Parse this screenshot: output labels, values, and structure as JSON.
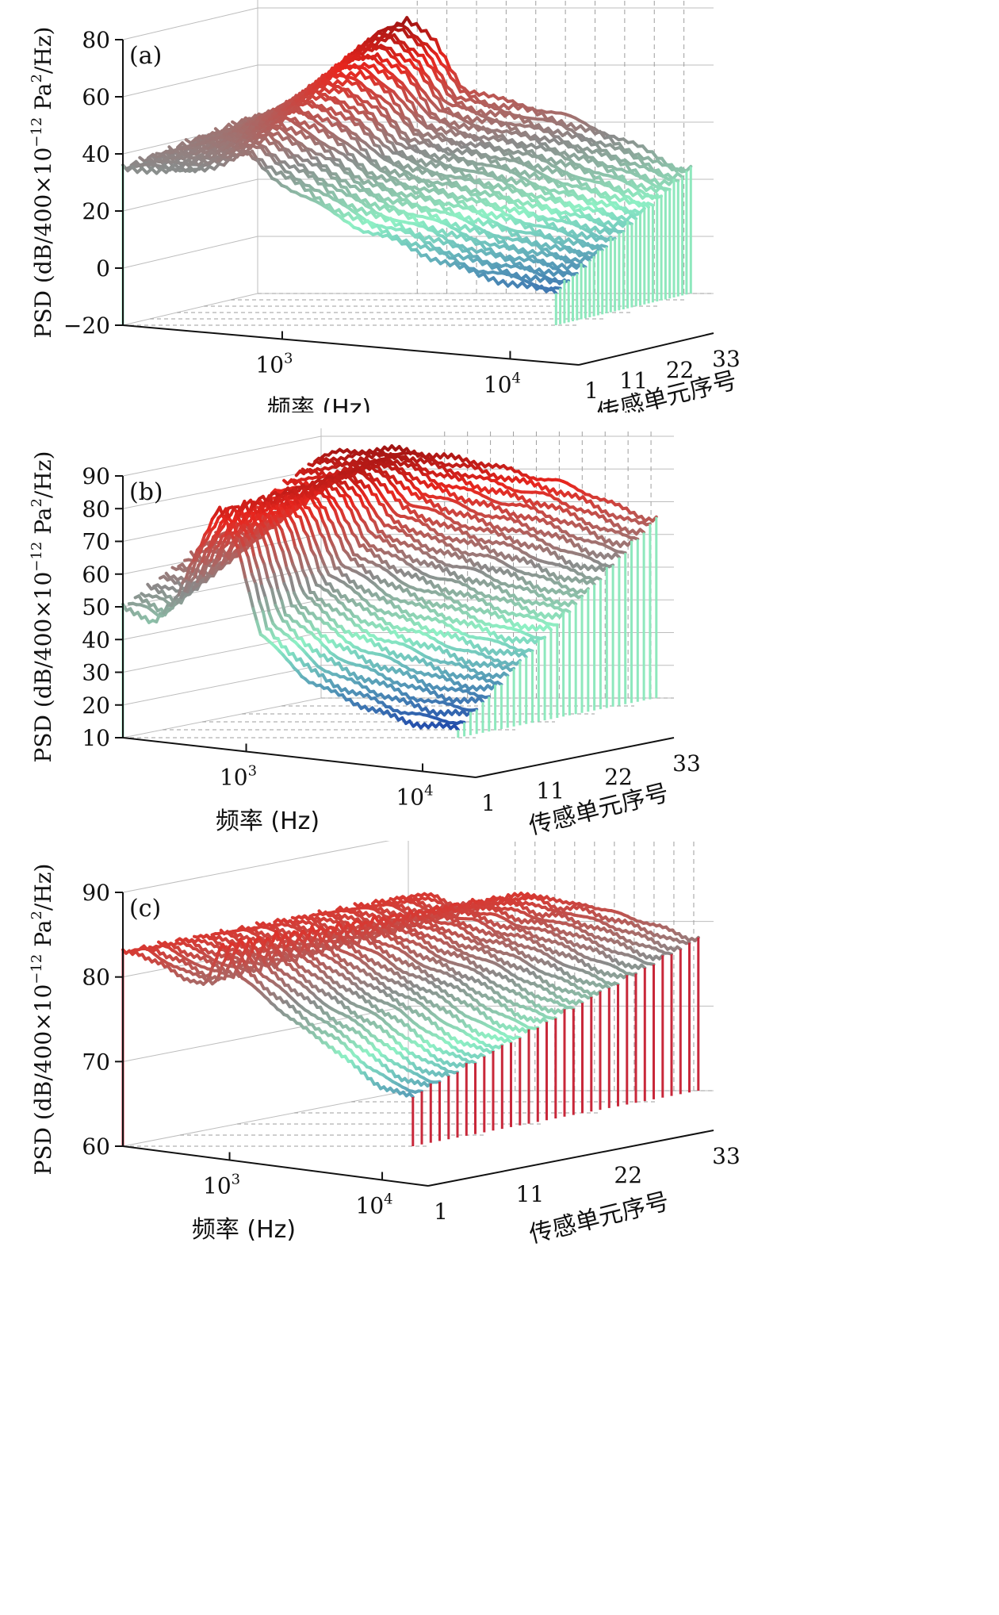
{
  "panels": [
    {
      "letter": "(a)",
      "ylabel_pre": "PSD (dB/400×10",
      "ylabel_exp": "−12",
      "ylabel_mid": " Pa",
      "ylabel_sq": "2",
      "ylabel_post": "/Hz)",
      "xlabel": "频率 (Hz)",
      "zlabel": "传感单元序号",
      "yticks": [
        "−20",
        "0",
        "20",
        "40",
        "60",
        "80"
      ],
      "xticks": [
        {
          "base": "10",
          "exp": "3"
        },
        {
          "base": "10",
          "exp": "4"
        }
      ],
      "zticks": [
        "1",
        "11",
        "22",
        "33"
      ]
    },
    {
      "letter": "(b)",
      "ylabel_pre": "PSD (dB/400×10",
      "ylabel_exp": "−12",
      "ylabel_mid": " Pa",
      "ylabel_sq": "2",
      "ylabel_post": "/Hz)",
      "xlabel": "频率 (Hz)",
      "zlabel": "传感单元序号",
      "yticks": [
        "10",
        "20",
        "30",
        "40",
        "50",
        "60",
        "70",
        "80",
        "90"
      ],
      "xticks": [
        {
          "base": "10",
          "exp": "3"
        },
        {
          "base": "10",
          "exp": "4"
        }
      ],
      "zticks": [
        "1",
        "11",
        "22",
        "33"
      ]
    },
    {
      "letter": "(c)",
      "ylabel_pre": "PSD (dB/400×10",
      "ylabel_exp": "−12",
      "ylabel_mid": " Pa",
      "ylabel_sq": "2",
      "ylabel_post": "/Hz)",
      "xlabel": "频率 (Hz)",
      "zlabel": "传感单元序号",
      "yticks": [
        "60",
        "70",
        "80",
        "90"
      ],
      "xticks": [
        {
          "base": "10",
          "exp": "3"
        },
        {
          "base": "10",
          "exp": "4"
        }
      ],
      "zticks": [
        "1",
        "11",
        "22",
        "33"
      ]
    }
  ],
  "chart_data": [
    {
      "type": "line",
      "subtype": "3d-waterfall",
      "x_scale": "log",
      "xlim": [
        200,
        20000
      ],
      "ylim": [
        -20,
        80
      ],
      "zlim": [
        1,
        33
      ],
      "series_count": 33,
      "color_by": "PSD level (blue low → cyan → gray → red high)",
      "profile_points": {
        "freq_hz": [
          200,
          250,
          300,
          400,
          500,
          700,
          900,
          1200,
          1600,
          2200,
          3000,
          4500,
          7000,
          10000,
          14000
        ],
        "psd_sensor_1": [
          35,
          35,
          34,
          34,
          36,
          40,
          32,
          26,
          20,
          14,
          10,
          4,
          -2,
          -5,
          -8
        ],
        "psd_sensor_33": [
          42,
          44,
          48,
          55,
          62,
          72,
          76,
          68,
          52,
          48,
          46,
          42,
          36,
          30,
          24
        ]
      }
    },
    {
      "type": "line",
      "subtype": "3d-waterfall",
      "x_scale": "log",
      "xlim": [
        200,
        20000
      ],
      "ylim": [
        10,
        90
      ],
      "zlim": [
        1,
        33
      ],
      "series_count": 33,
      "color_by": "PSD level (blue low → cyan → gray → red high)",
      "profile_points": {
        "freq_hz": [
          200,
          250,
          300,
          400,
          500,
          700,
          900,
          1200,
          1600,
          2200,
          3000,
          4500,
          7000,
          10000,
          14000
        ],
        "psd_sensor_1": [
          50,
          48,
          45,
          52,
          65,
          80,
          68,
          42,
          35,
          28,
          24,
          20,
          16,
          14,
          13
        ],
        "psd_sensor_33": [
          84,
          85,
          85,
          86,
          86,
          85,
          84,
          83,
          82,
          80,
          78,
          76,
          72,
          68,
          65
        ]
      }
    },
    {
      "type": "line",
      "subtype": "3d-waterfall",
      "x_scale": "log",
      "xlim": [
        200,
        20000
      ],
      "ylim": [
        60,
        90
      ],
      "zlim": [
        1,
        33
      ],
      "series_count": 33,
      "color_by": "PSD level (blue low → cyan → gray → red high)",
      "profile_points": {
        "freq_hz": [
          200,
          250,
          300,
          400,
          500,
          700,
          900,
          1200,
          1600,
          2200,
          3000,
          4500,
          7000,
          10000,
          14000
        ],
        "psd_sensor_1": [
          83,
          83,
          82,
          81,
          80,
          79,
          84,
          80,
          78,
          76,
          74,
          72,
          69,
          67,
          66
        ],
        "psd_sensor_33": [
          83,
          83,
          83,
          82,
          82,
          82,
          83,
          83,
          83,
          82,
          82,
          81,
          80,
          79,
          78
        ]
      }
    }
  ],
  "colors": {
    "axis": "#111111",
    "grid": "#bdbdbd",
    "grid_dashed": "#9e9e9e",
    "low": "#1538a8",
    "mid_low": "#8ef0c4",
    "mid": "#8a8a8a",
    "high": "#e8261e",
    "peak": "#8b1010",
    "stem_cyan": "#8ee8bd",
    "stem_red": "#c8283a"
  }
}
